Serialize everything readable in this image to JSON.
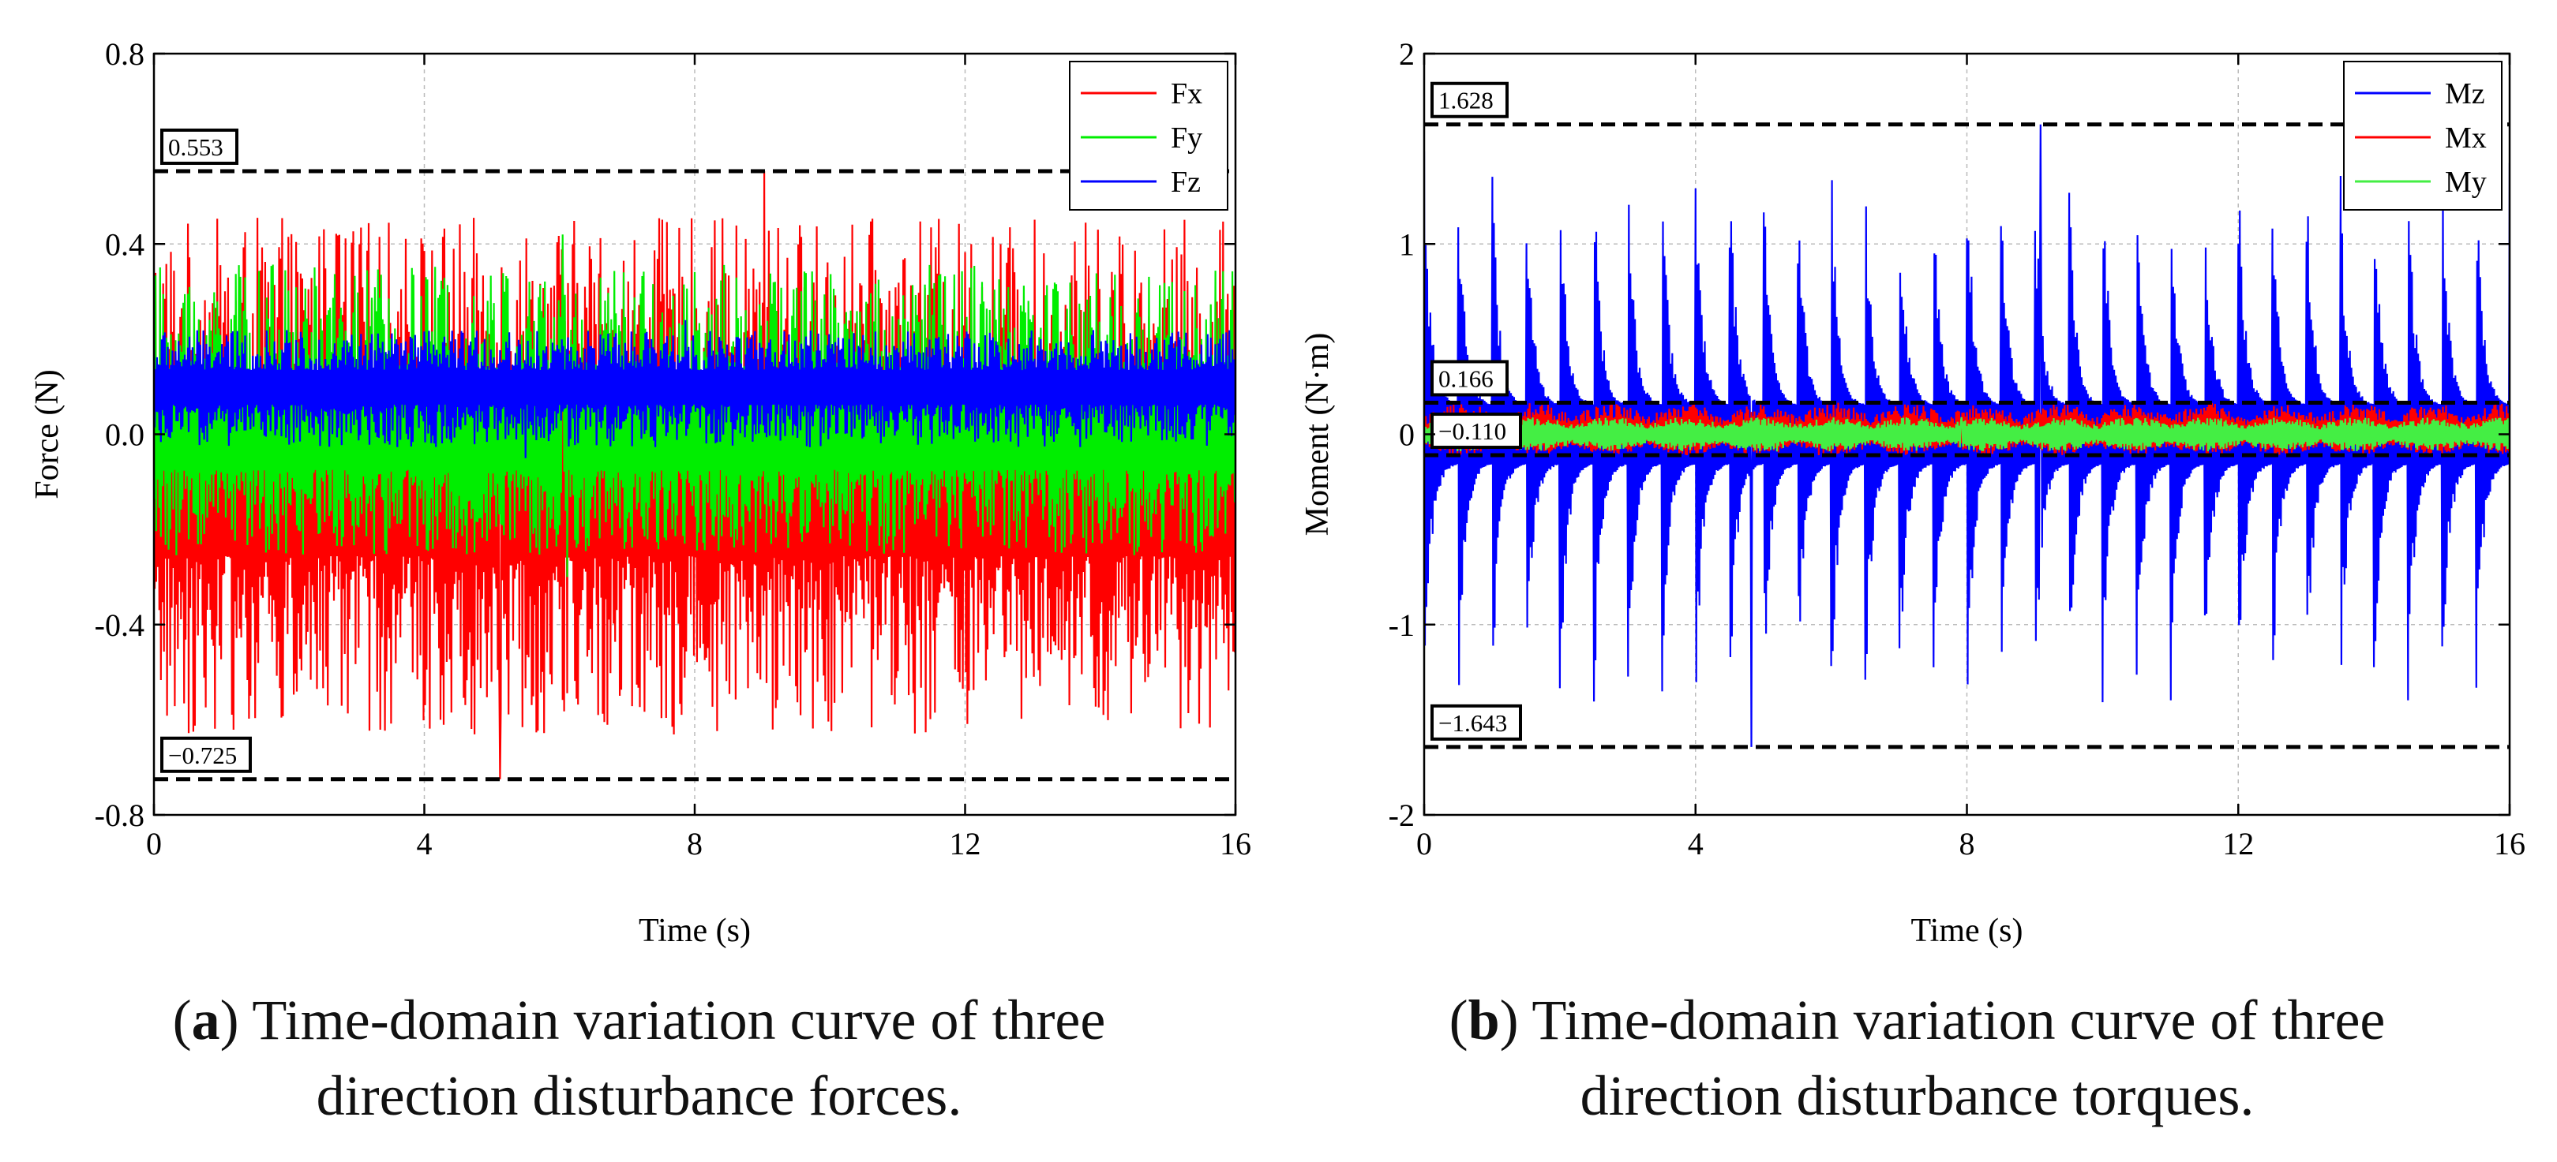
{
  "figures": [
    {
      "id": "a",
      "caption_letter": "a",
      "caption_text_line1": "Time-domain variation curve of three",
      "caption_text_line2": "direction disturbance forces."
    },
    {
      "id": "b",
      "caption_letter": "b",
      "caption_text_line1": "Time-domain variation curve of three",
      "caption_text_line2": "direction disturbance torques."
    }
  ],
  "chart_data": [
    {
      "type": "line",
      "title": "",
      "xlabel": "Time (s)",
      "ylabel": "Force (N)",
      "xlim": [
        0,
        16
      ],
      "ylim": [
        -0.8,
        0.8
      ],
      "xticks": [
        "0",
        "4",
        "8",
        "12",
        "16"
      ],
      "yticks": [
        "-0.8",
        "-0.4",
        "0.0",
        "0.4",
        "0.8"
      ],
      "ytick_values": [
        -0.8,
        -0.4,
        0.0,
        0.4,
        0.8
      ],
      "xtick_values": [
        0,
        4,
        8,
        12,
        16
      ],
      "grid": true,
      "legend_position": "top-right",
      "series": [
        {
          "name": "Fx",
          "color": "#ff0000",
          "mean": -0.1,
          "envelope_max": 0.553,
          "envelope_min": -0.725,
          "pattern": "random-noise"
        },
        {
          "name": "Fy",
          "color": "#00ee00",
          "mean": 0.0,
          "envelope_max": 0.42,
          "envelope_min": -0.3,
          "pattern": "random-noise"
        },
        {
          "name": "Fz",
          "color": "#0000ff",
          "mean": 0.1,
          "envelope_max": 0.24,
          "envelope_min": -0.05,
          "pattern": "random-noise"
        }
      ],
      "reference_lines": [
        {
          "value": 0.553,
          "label": "0.553"
        },
        {
          "value": -0.725,
          "label": "−0.725"
        }
      ]
    },
    {
      "type": "line",
      "title": "",
      "xlabel": "Time (s)",
      "ylabel": "Moment (N·m)",
      "xlim": [
        0,
        16
      ],
      "ylim": [
        -2,
        2
      ],
      "xticks": [
        "0",
        "4",
        "8",
        "12",
        "16"
      ],
      "yticks": [
        "-2",
        "-1",
        "0",
        "1",
        "2"
      ],
      "ytick_values": [
        -2,
        -1,
        0,
        1,
        2
      ],
      "xtick_values": [
        0,
        4,
        8,
        12,
        16
      ],
      "grid": true,
      "legend_position": "top-right",
      "series": [
        {
          "name": "Mz",
          "color": "#0000ff",
          "mean": 0.0,
          "envelope_max": 1.628,
          "envelope_min": -1.643,
          "pattern": "periodic-spikes",
          "period": 0.5
        },
        {
          "name": "Mx",
          "color": "#ff0000",
          "mean": 0.0,
          "envelope_max": 0.166,
          "envelope_min": -0.11,
          "pattern": "beating"
        },
        {
          "name": "My",
          "color": "#44ee44",
          "mean": 0.0,
          "envelope_max": 0.09,
          "envelope_min": -0.09,
          "pattern": "beating"
        }
      ],
      "reference_lines": [
        {
          "value": 1.628,
          "label": "1.628"
        },
        {
          "value": 0.166,
          "label": "0.166"
        },
        {
          "value": -0.11,
          "label": "−0.110"
        },
        {
          "value": -1.643,
          "label": "−1.643"
        }
      ]
    }
  ]
}
